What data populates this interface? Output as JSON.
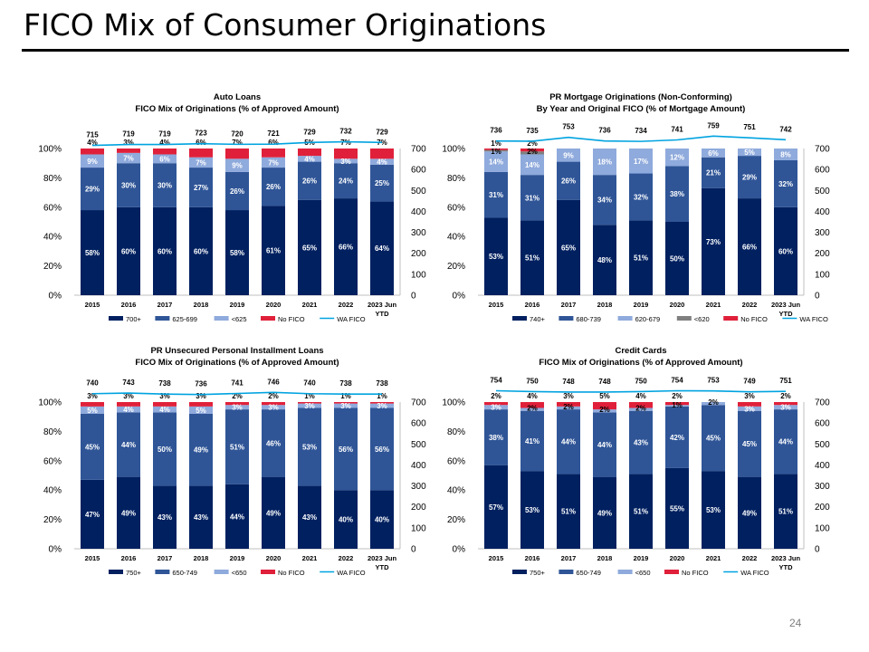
{
  "page": {
    "title": "FICO Mix of Consumer Originations",
    "page_number": "24"
  },
  "colors": {
    "dark": "#002060",
    "mid": "#2F5597",
    "light": "#8FAADC",
    "gray": "#7F7F7F",
    "red": "#E0203A",
    "line": "#00A3E0"
  },
  "chart_data": [
    {
      "id": "auto",
      "type": "bar",
      "stacked": true,
      "title": "Auto Loans",
      "subtitle": "FICO Mix of Originations (% of Approved Amount)",
      "categories": [
        "2015",
        "2016",
        "2017",
        "2018",
        "2019",
        "2020",
        "2021",
        "2022",
        "2023 Jun YTD"
      ],
      "y_left": {
        "range": [
          0,
          100
        ],
        "ticks": [
          "0%",
          "20%",
          "40%",
          "60%",
          "80%",
          "100%"
        ]
      },
      "y_right": {
        "range": [
          0,
          700
        ],
        "ticks": [
          "0",
          "100",
          "200",
          "300",
          "400",
          "500",
          "600",
          "700"
        ]
      },
      "series": [
        {
          "name": "700+",
          "color": "dark",
          "values": [
            58,
            60,
            60,
            60,
            58,
            61,
            65,
            66,
            64
          ],
          "labels": [
            "58%",
            "60%",
            "60%",
            "60%",
            "58%",
            "61%",
            "65%",
            "66%",
            "64%"
          ]
        },
        {
          "name": "625-699",
          "color": "mid",
          "values": [
            29,
            30,
            30,
            27,
            26,
            26,
            26,
            24,
            25
          ],
          "labels": [
            "29%",
            "30%",
            "30%",
            "27%",
            "26%",
            "26%",
            "26%",
            "24%",
            "25%"
          ]
        },
        {
          "name": "<625",
          "color": "light",
          "values": [
            9,
            7,
            6,
            7,
            9,
            7,
            4,
            3,
            4
          ],
          "labels": [
            "9%",
            "7%",
            "6%",
            "7%",
            "9%",
            "7%",
            "4%",
            "3%",
            "4%"
          ]
        },
        {
          "name": "No FICO",
          "color": "red",
          "values": [
            4,
            3,
            4,
            6,
            7,
            6,
            5,
            7,
            7
          ],
          "labels": [
            "4%",
            "3%",
            "4%",
            "6%",
            "7%",
            "6%",
            "5%",
            "7%",
            "7%"
          ]
        }
      ],
      "wa_fico": {
        "name": "WA FICO",
        "values": [
          715,
          719,
          719,
          723,
          720,
          721,
          729,
          732,
          729
        ]
      }
    },
    {
      "id": "mortgage",
      "type": "bar",
      "stacked": true,
      "title": "PR Mortgage Originations (Non-Conforming)",
      "subtitle": "By Year and Original FICO (% of Mortgage Amount)",
      "categories": [
        "2015",
        "2016",
        "2017",
        "2018",
        "2019",
        "2020",
        "2021",
        "2022",
        "2023 Jun YTD"
      ],
      "y_left": {
        "range": [
          0,
          100
        ],
        "ticks": [
          "0%",
          "20%",
          "40%",
          "60%",
          "80%",
          "100%"
        ]
      },
      "y_right": {
        "range": [
          0,
          700
        ],
        "ticks": [
          "0",
          "100",
          "200",
          "300",
          "400",
          "500",
          "600",
          "700"
        ]
      },
      "series": [
        {
          "name": "740+",
          "color": "dark",
          "values": [
            53,
            51,
            65,
            48,
            51,
            50,
            73,
            66,
            60
          ],
          "labels": [
            "53%",
            "51%",
            "65%",
            "48%",
            "51%",
            "50%",
            "73%",
            "66%",
            "60%"
          ]
        },
        {
          "name": "680-739",
          "color": "mid",
          "values": [
            31,
            31,
            26,
            34,
            32,
            38,
            21,
            29,
            32
          ],
          "labels": [
            "31%",
            "31%",
            "26%",
            "34%",
            "32%",
            "38%",
            "21%",
            "29%",
            "32%"
          ]
        },
        {
          "name": "620-679",
          "color": "light",
          "values": [
            14,
            14,
            9,
            18,
            17,
            12,
            6,
            5,
            8
          ],
          "labels": [
            "14%",
            "14%",
            "9%",
            "18%",
            "17%",
            "12%",
            "6%",
            "5%",
            "8%"
          ]
        },
        {
          "name": "<620",
          "color": "gray",
          "values": [
            1,
            2,
            0,
            0,
            0,
            0,
            0,
            0,
            0
          ],
          "labels": [
            "1%",
            "2%",
            "",
            "",
            "",
            "",
            "",
            "",
            ""
          ]
        },
        {
          "name": "No FICO",
          "color": "red",
          "values": [
            1,
            2,
            0,
            0,
            0,
            0,
            0,
            0,
            0
          ],
          "labels": [
            "1%",
            "2%",
            "",
            "",
            "",
            "",
            "",
            "",
            ""
          ]
        }
      ],
      "wa_fico": {
        "name": "WA FICO",
        "values": [
          736,
          735,
          753,
          736,
          734,
          741,
          759,
          751,
          742
        ]
      }
    },
    {
      "id": "personal",
      "type": "bar",
      "stacked": true,
      "title": "PR Unsecured Personal Installment Loans",
      "subtitle": "FICO Mix of Originations (% of Approved Amount)",
      "categories": [
        "2015",
        "2016",
        "2017",
        "2018",
        "2019",
        "2020",
        "2021",
        "2022",
        "2023 Jun YTD"
      ],
      "y_left": {
        "range": [
          0,
          100
        ],
        "ticks": [
          "0%",
          "20%",
          "40%",
          "60%",
          "80%",
          "100%"
        ]
      },
      "y_right": {
        "range": [
          0,
          700
        ],
        "ticks": [
          "0",
          "100",
          "200",
          "300",
          "400",
          "500",
          "600",
          "700"
        ]
      },
      "series": [
        {
          "name": "750+",
          "color": "dark",
          "values": [
            47,
            49,
            43,
            43,
            44,
            49,
            43,
            40,
            40
          ],
          "labels": [
            "47%",
            "49%",
            "43%",
            "43%",
            "44%",
            "49%",
            "43%",
            "40%",
            "40%"
          ]
        },
        {
          "name": "650-749",
          "color": "mid",
          "values": [
            45,
            44,
            50,
            49,
            51,
            46,
            53,
            56,
            56
          ],
          "labels": [
            "45%",
            "44%",
            "50%",
            "49%",
            "51%",
            "46%",
            "53%",
            "56%",
            "56%"
          ]
        },
        {
          "name": "<650",
          "color": "light",
          "values": [
            5,
            4,
            4,
            5,
            3,
            3,
            3,
            3,
            3
          ],
          "labels": [
            "5%",
            "4%",
            "4%",
            "5%",
            "3%",
            "3%",
            "3%",
            "3%",
            "3%"
          ]
        },
        {
          "name": "No FICO",
          "color": "red",
          "values": [
            3,
            3,
            3,
            3,
            2,
            2,
            1,
            1,
            1
          ],
          "labels": [
            "3%",
            "3%",
            "3%",
            "3%",
            "2%",
            "2%",
            "1%",
            "1%",
            "1%"
          ]
        }
      ],
      "wa_fico": {
        "name": "WA FICO",
        "values": [
          740,
          743,
          738,
          736,
          741,
          746,
          740,
          738,
          738
        ]
      }
    },
    {
      "id": "cards",
      "type": "bar",
      "stacked": true,
      "title": "Credit Cards",
      "subtitle": "FICO Mix of Originations (% of Approved Amount)",
      "categories": [
        "2015",
        "2016",
        "2017",
        "2018",
        "2019",
        "2020",
        "2021",
        "2022",
        "2023 Jun YTD"
      ],
      "y_left": {
        "range": [
          0,
          100
        ],
        "ticks": [
          "0%",
          "20%",
          "40%",
          "60%",
          "80%",
          "100%"
        ]
      },
      "y_right": {
        "range": [
          0,
          700
        ],
        "ticks": [
          "0",
          "100",
          "200",
          "300",
          "400",
          "500",
          "600",
          "700"
        ]
      },
      "series": [
        {
          "name": "750+",
          "color": "dark",
          "values": [
            57,
            53,
            51,
            49,
            51,
            55,
            53,
            49,
            51
          ],
          "labels": [
            "57%",
            "53%",
            "51%",
            "49%",
            "51%",
            "55%",
            "53%",
            "49%",
            "51%"
          ]
        },
        {
          "name": "650-749",
          "color": "mid",
          "values": [
            38,
            41,
            44,
            44,
            43,
            42,
            45,
            45,
            44
          ],
          "labels": [
            "38%",
            "41%",
            "44%",
            "44%",
            "43%",
            "42%",
            "45%",
            "45%",
            "44%"
          ]
        },
        {
          "name": "<650",
          "color": "light",
          "values": [
            3,
            2,
            2,
            2,
            2,
            1,
            2,
            3,
            3
          ],
          "labels": [
            "3%",
            "2%",
            "2%",
            "2%",
            "2%",
            "1%",
            "2%",
            "3%",
            "3%"
          ]
        },
        {
          "name": "No FICO",
          "color": "red",
          "values": [
            2,
            4,
            3,
            5,
            4,
            2,
            0,
            3,
            2
          ],
          "labels": [
            "2%",
            "4%",
            "3%",
            "5%",
            "4%",
            "2%",
            "",
            "3%",
            "2%"
          ]
        }
      ],
      "wa_fico": {
        "name": "WA FICO",
        "values": [
          754,
          750,
          748,
          748,
          750,
          754,
          753,
          749,
          751
        ]
      }
    }
  ]
}
